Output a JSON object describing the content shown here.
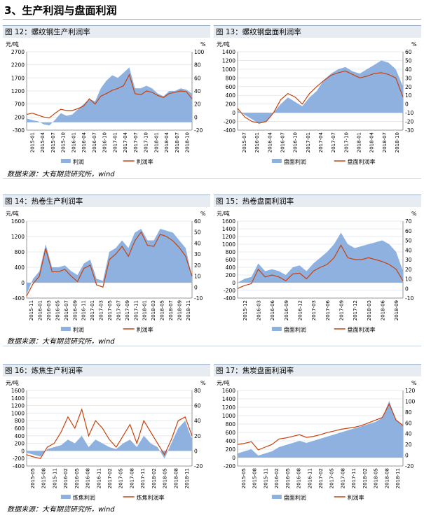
{
  "section_title": "3、生产利润与盘面利润",
  "source_note": "数据来源：大有期货研究所，wind",
  "colors": {
    "area": "#8eb1e0",
    "line": "#c8410b",
    "grid": "#dfe5ec",
    "axis": "#7f7f7f"
  },
  "chart_data": [
    {
      "type": "area",
      "title": "图 12：螺纹钢生产利润率",
      "left_unit": "元/吨",
      "right_unit": "%",
      "ylim": [
        -300,
        2700
      ],
      "yticks": [
        -300,
        200,
        700,
        1200,
        1700,
        2200,
        2700
      ],
      "y2lim": [
        -20,
        100
      ],
      "y2ticks": [
        -20,
        0,
        20,
        40,
        60,
        80,
        100
      ],
      "x_ticks": [
        "2015-01",
        "2015-04",
        "2015-07",
        "2015-10",
        "2016-01",
        "2016-04",
        "2016-07",
        "2016-10",
        "2017-01",
        "2017-04",
        "2017-07",
        "2017-10",
        "2018-01",
        "2018-04",
        "2018-07",
        "2018-10"
      ],
      "series": [
        {
          "name": "利润",
          "axis": "left",
          "style": "area",
          "values": [
            150,
            80,
            40,
            -80,
            -120,
            100,
            350,
            250,
            300,
            500,
            700,
            900,
            800,
            1300,
            1600,
            1800,
            1700,
            1900,
            2100,
            1300,
            1300,
            1400,
            1300,
            1100,
            1000,
            1200,
            1200,
            1300,
            1250,
            1100
          ]
        },
        {
          "name": "利润率",
          "axis": "right",
          "style": "line",
          "values": [
            4,
            6,
            3,
            0,
            -1,
            6,
            12,
            10,
            10,
            13,
            17,
            28,
            20,
            32,
            36,
            41,
            44,
            48,
            65,
            36,
            34,
            40,
            38,
            33,
            30,
            36,
            38,
            40,
            39,
            28
          ]
        }
      ],
      "legend": [
        "利润",
        "利润率"
      ]
    },
    {
      "type": "area",
      "title": "图 13：螺纹钢盘面利润率",
      "left_unit": "元/吨",
      "right_unit": "%",
      "ylim": [
        -400,
        1400
      ],
      "yticks": [
        -400,
        -200,
        0,
        200,
        400,
        600,
        800,
        1000,
        1200,
        1400
      ],
      "y2lim": [
        -30,
        60
      ],
      "y2ticks": [
        -30,
        -20,
        -10,
        0,
        10,
        20,
        30,
        40,
        50,
        60
      ],
      "x_ticks": [
        "2015-07",
        "2016-01",
        "2016-04",
        "2016-07",
        "2016-10",
        "2017-01",
        "2017-04",
        "2017-07",
        "2017-10",
        "2018-01",
        "2018-04",
        "2018-07",
        "2018-10"
      ],
      "series": [
        {
          "name": "盘面利润",
          "axis": "left",
          "style": "area",
          "values": [
            50,
            -50,
            -150,
            -250,
            -200,
            0,
            200,
            350,
            250,
            150,
            350,
            500,
            750,
            900,
            1000,
            1050,
            950,
            900,
            1000,
            1100,
            1200,
            1150,
            1000,
            600
          ]
        },
        {
          "name": "盘面利润率",
          "axis": "right",
          "style": "line",
          "values": [
            -5,
            -15,
            -20,
            -22,
            -20,
            -10,
            5,
            12,
            8,
            0,
            12,
            20,
            27,
            33,
            36,
            38,
            34,
            30,
            32,
            35,
            36,
            34,
            30,
            8
          ]
        }
      ],
      "legend": [
        "盘面利润",
        "盘面利润率"
      ]
    },
    {
      "type": "area",
      "title": "图 14：热卷生产利润率",
      "left_unit": "元/吨",
      "right_unit": "%",
      "ylim": [
        -400,
        1600
      ],
      "yticks": [
        -400,
        0,
        400,
        800,
        1200,
        1600
      ],
      "y2lim": [
        -10,
        60
      ],
      "y2ticks": [
        -10,
        0,
        10,
        20,
        30,
        40,
        50,
        60
      ],
      "x_ticks": [
        "2015-11",
        "2016-01",
        "2016-03",
        "2016-05",
        "2016-07",
        "2016-09",
        "2016-11",
        "2017-01",
        "2017-03",
        "2017-05",
        "2017-07",
        "2017-09",
        "2017-11",
        "2018-01",
        "2018-03",
        "2018-05",
        "2018-07",
        "2018-09",
        "2018-11"
      ],
      "series": [
        {
          "name": "利润",
          "axis": "left",
          "style": "area",
          "values": [
            -300,
            100,
            300,
            1000,
            400,
            400,
            450,
            300,
            200,
            500,
            600,
            100,
            50,
            800,
            900,
            1100,
            900,
            1300,
            1400,
            1100,
            1100,
            1400,
            1350,
            1300,
            1100,
            900,
            150
          ]
        },
        {
          "name": "利润率",
          "axis": "right",
          "style": "line",
          "values": [
            -8,
            3,
            10,
            35,
            14,
            14,
            16,
            10,
            5,
            17,
            20,
            2,
            0,
            25,
            30,
            37,
            28,
            42,
            50,
            38,
            37,
            48,
            46,
            42,
            36,
            28,
            10
          ]
        }
      ],
      "legend": [
        "利润",
        "利润率"
      ]
    },
    {
      "type": "area",
      "title": "图 15：热卷盘面利润率",
      "left_unit": "元/吨",
      "right_unit": "%",
      "ylim": [
        -400,
        1600
      ],
      "yticks": [
        -400,
        -200,
        0,
        200,
        400,
        600,
        800,
        1000,
        1200,
        1400,
        1600
      ],
      "y2lim": [
        -10,
        70
      ],
      "y2ticks": [
        -10,
        0,
        10,
        20,
        30,
        40,
        50,
        60,
        70
      ],
      "x_ticks": [
        "2015-12",
        "2016-03",
        "2016-06",
        "2016-09",
        "2016-12",
        "2017-03",
        "2017-06",
        "2017-09",
        "2017-12",
        "2018-03",
        "2018-06",
        "2018-09"
      ],
      "series": [
        {
          "name": "盘面利润",
          "axis": "left",
          "style": "area",
          "values": [
            0,
            100,
            150,
            500,
            300,
            350,
            300,
            200,
            400,
            450,
            300,
            500,
            650,
            800,
            1000,
            1300,
            1000,
            900,
            950,
            1000,
            1050,
            1100,
            1000,
            800,
            300
          ]
        },
        {
          "name": "盘面利润率",
          "axis": "right",
          "style": "line",
          "values": [
            0,
            3,
            5,
            20,
            12,
            14,
            12,
            8,
            15,
            16,
            10,
            18,
            22,
            25,
            32,
            45,
            32,
            30,
            30,
            32,
            30,
            28,
            25,
            20,
            8
          ]
        }
      ],
      "legend": [
        "盘面利润",
        "盘面利润率"
      ]
    },
    {
      "type": "area",
      "title": "图 16：炼焦生产利润率",
      "left_unit": "元/吨",
      "right_unit": "%",
      "ylim": [
        -400,
        1600
      ],
      "yticks": [
        -400,
        -200,
        0,
        200,
        400,
        600,
        800,
        1000,
        1200,
        1400,
        1600
      ],
      "y2lim": [
        -20,
        80
      ],
      "y2ticks": [
        -20,
        0,
        20,
        40,
        60,
        80
      ],
      "x_ticks": [
        "2015-05",
        "2015-08",
        "2015-11",
        "2016-02",
        "2016-05",
        "2016-08",
        "2016-11",
        "2017-02",
        "2017-05",
        "2017-08",
        "2017-11",
        "2018-02",
        "2018-05",
        "2018-08",
        "2018-11"
      ],
      "series": [
        {
          "name": "炼焦利润",
          "axis": "left",
          "style": "area",
          "values": [
            -50,
            -100,
            -150,
            50,
            100,
            150,
            300,
            200,
            400,
            100,
            300,
            200,
            100,
            50,
            200,
            300,
            100,
            400,
            200,
            100,
            -200,
            200,
            600,
            800,
            300
          ]
        },
        {
          "name": "炼焦利润率",
          "axis": "right",
          "style": "line",
          "values": [
            -5,
            -8,
            -10,
            5,
            10,
            25,
            45,
            30,
            55,
            20,
            40,
            30,
            15,
            5,
            20,
            35,
            10,
            40,
            25,
            10,
            -5,
            15,
            40,
            45,
            20
          ]
        }
      ],
      "legend": [
        "炼焦利润",
        "炼焦利润率"
      ]
    },
    {
      "type": "area",
      "title": "图 17：焦炭盘面利润率",
      "left_unit": "元/吨",
      "right_unit": "%",
      "ylim": [
        -200,
        1600
      ],
      "yticks": [
        -200,
        0,
        200,
        400,
        600,
        800,
        1000,
        1200,
        1400,
        1600
      ],
      "y2lim": [
        -20,
        120
      ],
      "y2ticks": [
        -20,
        0,
        20,
        40,
        60,
        80,
        100,
        120
      ],
      "x_ticks": [
        "2015-05",
        "2015-08",
        "2015-11",
        "2016-02",
        "2016-05",
        "2016-08",
        "2016-11",
        "2017-02",
        "2017-05",
        "2017-08",
        "2017-11",
        "2018-02",
        "2018-05",
        "2018-08",
        "2018-11"
      ],
      "series": [
        {
          "name": "盘面利润",
          "axis": "left",
          "style": "area",
          "values": [
            100,
            150,
            200,
            50,
            100,
            150,
            250,
            300,
            350,
            400,
            350,
            400,
            450,
            500,
            550,
            600,
            650,
            700,
            750,
            800,
            850,
            950,
            1350,
            900,
            750
          ]
        },
        {
          "name": "利润率",
          "axis": "right",
          "style": "line",
          "values": [
            20,
            22,
            25,
            10,
            15,
            20,
            30,
            32,
            35,
            38,
            33,
            35,
            38,
            42,
            45,
            48,
            50,
            52,
            55,
            60,
            65,
            70,
            95,
            65,
            55
          ]
        }
      ],
      "legend": [
        "盘面利润",
        "利润率"
      ]
    }
  ]
}
